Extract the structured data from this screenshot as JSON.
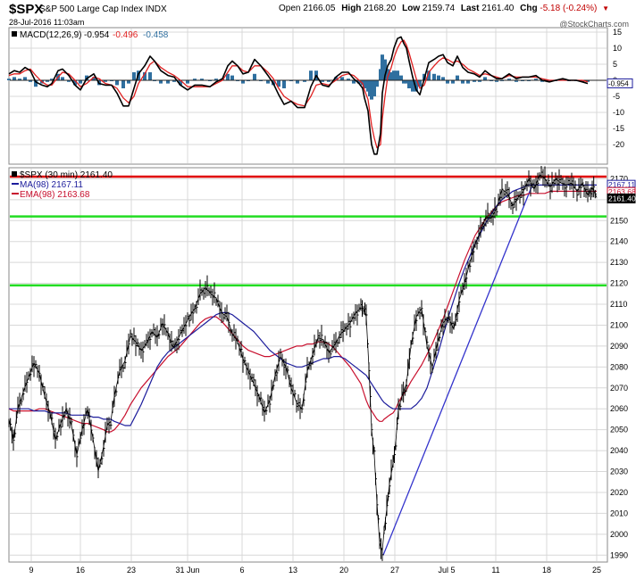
{
  "header": {
    "symbol": "$SPX",
    "description": "S&P 500 Large Cap Index  INDX",
    "timestamp": "28-Jul-2016 11:03am",
    "open_label": "Open",
    "open": "2166.05",
    "high_label": "High",
    "high": "2168.20",
    "low_label": "Low",
    "low": "2159.74",
    "last_label": "Last",
    "last": "2161.40",
    "chg_label": "Chg",
    "chg": "-5.18 (-0.24%)",
    "brand": "@StockCharts.com"
  },
  "colors": {
    "price": "#000000",
    "ma": "#1c1c9c",
    "ema": "#c8102e",
    "resistance": "#e00000",
    "support": "#22dd22",
    "trendline": "#3333cc",
    "macd_line": "#000000",
    "signal_line": "#e02020",
    "histogram": "#2f6f9f",
    "grid": "#d8d8d8"
  },
  "chart_data": [
    {
      "type": "line",
      "panel": "MACD",
      "legend": {
        "prefix": "MACD(12,26,9)",
        "macd": "-0.954",
        "signal": "-0.496",
        "hist": "-0.458"
      },
      "ylim": [
        -25,
        15
      ],
      "yticks": [
        15,
        10,
        5,
        0,
        -5,
        -10,
        -15,
        -20
      ],
      "tick_labels": [
        "15",
        "10",
        "5",
        "0",
        "-5",
        "-10",
        "-15",
        "-20"
      ],
      "last_value_label": "-0.954",
      "x": [
        0,
        6,
        12,
        18,
        24,
        30,
        37,
        43,
        48,
        55,
        60,
        67,
        74,
        80,
        87,
        95,
        101,
        108,
        115,
        121,
        128,
        134,
        140,
        145,
        152,
        158,
        163,
        170,
        178,
        185,
        192,
        200,
        208,
        216,
        225,
        232,
        239,
        245,
        250,
        256,
        262,
        268,
        275,
        282,
        290,
        296,
        302,
        308,
        316,
        323,
        331,
        338,
        344,
        351,
        358,
        366,
        373,
        380,
        386,
        392,
        396,
        398,
        402,
        404,
        406,
        409,
        412,
        416,
        418,
        421,
        424,
        428,
        431,
        435,
        439,
        442,
        445,
        448,
        452,
        456,
        460,
        465,
        470,
        476,
        481,
        486,
        491,
        497,
        502,
        508,
        514,
        521,
        527,
        533,
        540,
        546,
        552,
        560,
        568,
        575,
        582,
        590,
        597,
        605,
        612,
        620,
        627,
        635,
        642,
        648
      ],
      "series": [
        {
          "name": "MACD",
          "values": [
            2,
            3,
            2.5,
            4,
            3,
            -0.5,
            -1.5,
            -2,
            -1,
            3,
            3.5,
            1.5,
            -1.5,
            -3,
            0.5,
            2,
            -1,
            -1.5,
            -1.5,
            -4,
            -8,
            -8,
            -2.5,
            2,
            4.5,
            7.5,
            6,
            3,
            1.5,
            1,
            -1.5,
            -3,
            -1.5,
            -1.5,
            -2,
            -0.5,
            0.5,
            4.5,
            6,
            4.5,
            2,
            2.5,
            6.5,
            4.5,
            1.5,
            -1,
            -4.5,
            -7.5,
            -6.5,
            -8.5,
            -8.5,
            -2,
            1.5,
            -1.5,
            -2,
            1,
            2.5,
            2.5,
            0.5,
            -1,
            -2.5,
            -5.5,
            -9.5,
            -15,
            -20,
            -23,
            -23,
            -16.5,
            -4,
            1.5,
            4.5,
            6.5,
            10,
            13,
            13.5,
            11.5,
            10,
            6,
            1,
            -3,
            -4.5,
            0.5,
            5.5,
            6.5,
            7.5,
            8,
            5.5,
            4.5,
            7.5,
            4,
            2.5,
            2,
            1,
            3,
            1.5,
            0.5,
            0.5,
            2,
            0.5,
            1,
            1,
            1.5,
            0,
            -0.5,
            0,
            0.5,
            0,
            0,
            -0.5,
            -1
          ]
        },
        {
          "name": "Signal",
          "values": [
            1.5,
            2,
            2,
            3,
            3.5,
            1.5,
            -0.5,
            -1.5,
            -1.5,
            1,
            2.5,
            2,
            0,
            -2,
            -1,
            1,
            0.5,
            -1,
            -1.5,
            -2.5,
            -5.5,
            -7,
            -5,
            -1,
            2,
            5,
            6,
            4,
            2.5,
            1.5,
            0,
            -2,
            -2,
            -2,
            -2,
            -1,
            0,
            2.5,
            4.5,
            4.5,
            3,
            2.5,
            4.5,
            4.5,
            2.5,
            0.5,
            -2.5,
            -5,
            -6.5,
            -7.5,
            -8,
            -5,
            -1.5,
            -1,
            -1.5,
            0,
            1.5,
            2,
            1.5,
            0,
            -1,
            -3,
            -6,
            -10,
            -14,
            -18,
            -21,
            -20,
            -12,
            -5,
            1,
            4,
            7,
            10,
            12,
            12.5,
            11,
            8.5,
            4.5,
            0.5,
            -2.5,
            -1.5,
            2.5,
            4.5,
            6,
            7,
            6.5,
            5.5,
            6,
            5,
            3.5,
            2.5,
            1.5,
            2,
            1.5,
            1,
            0.5,
            1.5,
            1,
            1,
            1,
            1,
            0.5,
            0,
            0,
            0,
            0,
            0,
            0,
            -0.5
          ]
        }
      ]
    },
    {
      "type": "line",
      "panel": "Price",
      "legend": {
        "price": "$SPX (30 min) 2161.40",
        "ma": "MA(98) 2167.11",
        "ema": "EMA(98) 2163.68"
      },
      "ylim": [
        1988,
        2174
      ],
      "yticks": [
        1990,
        2000,
        2010,
        2020,
        2030,
        2040,
        2050,
        2060,
        2070,
        2080,
        2090,
        2100,
        2110,
        2120,
        2130,
        2140,
        2150,
        2160,
        2170
      ],
      "tick_labels": [
        "1990",
        "2000",
        "2010",
        "2020",
        "2030",
        "2040",
        "2050",
        "2060",
        "2070",
        "2080",
        "2090",
        "2100",
        "2110",
        "2120",
        "2130",
        "2140",
        "2150",
        "2160",
        "2170"
      ],
      "price_labels": {
        "last": "2161.40",
        "ma": "2167.11",
        "ema": "2163.68"
      },
      "x_labels": [
        "9",
        "16",
        "23",
        "31 Jun",
        "6",
        "13",
        "20",
        "27",
        "Jul 5",
        "11",
        "18",
        "25"
      ],
      "x_label_pos": [
        0,
        55,
        112,
        175,
        236,
        293,
        350,
        407,
        465,
        520,
        577,
        633
      ],
      "lines": {
        "resistance": 2171,
        "support_upper": 2152,
        "support_lower": 2119
      },
      "trendline": {
        "from": [
          419,
          1990
        ],
        "to": [
          585,
          2166
        ]
      },
      "x": [
        0,
        5,
        10,
        16,
        22,
        28,
        34,
        40,
        46,
        52,
        58,
        64,
        70,
        76,
        82,
        88,
        94,
        100,
        106,
        110,
        114,
        118,
        124,
        130,
        136,
        142,
        148,
        154,
        160,
        166,
        172,
        178,
        184,
        190,
        196,
        202,
        208,
        214,
        220,
        226,
        232,
        238,
        244,
        250,
        256,
        262,
        268,
        274,
        280,
        286,
        292,
        298,
        304,
        310,
        316,
        322,
        328,
        334,
        340,
        346,
        352,
        358,
        364,
        370,
        376,
        382,
        388,
        394,
        397,
        400,
        403,
        406,
        409,
        412,
        415,
        418,
        420,
        423,
        426,
        430,
        433,
        436,
        440,
        445,
        450,
        456,
        462,
        468,
        474,
        480,
        486,
        492,
        498,
        504,
        510,
        516,
        522,
        528,
        534,
        540,
        546,
        552,
        558,
        564,
        570,
        576,
        582,
        588,
        594,
        600,
        606,
        612,
        618,
        624,
        630,
        636,
        642,
        648,
        653,
        658
      ],
      "series": [
        {
          "name": "$SPX",
          "values": [
            2055,
            2045,
            2060,
            2068,
            2075,
            2082,
            2077,
            2066,
            2058,
            2045,
            2053,
            2060,
            2052,
            2038,
            2050,
            2060,
            2046,
            2030,
            2042,
            2052,
            2054,
            2066,
            2078,
            2083,
            2095,
            2092,
            2088,
            2091,
            2097,
            2094,
            2101,
            2096,
            2089,
            2094,
            2099,
            2104,
            2108,
            2115,
            2118,
            2115,
            2113,
            2106,
            2104,
            2096,
            2092,
            2084,
            2078,
            2072,
            2066,
            2058,
            2064,
            2076,
            2085,
            2080,
            2070,
            2063,
            2060,
            2078,
            2086,
            2094,
            2093,
            2087,
            2090,
            2095,
            2098,
            2101,
            2106,
            2108,
            2108,
            2104,
            2080,
            2050,
            2038,
            2015,
            1996,
            1992,
            2002,
            2012,
            2024,
            2034,
            2044,
            2060,
            2066,
            2072,
            2090,
            2104,
            2108,
            2090,
            2080,
            2092,
            2101,
            2104,
            2098,
            2112,
            2120,
            2130,
            2139,
            2145,
            2152,
            2151,
            2156,
            2165,
            2163,
            2157,
            2161,
            2164,
            2170,
            2165,
            2172,
            2170,
            2166,
            2170,
            2168,
            2167,
            2168,
            2164,
            2168,
            2162,
            2166,
            2161
          ]
        },
        {
          "name": "MA(98)",
          "values": [
            2060,
            2060,
            2060,
            2060,
            2060,
            2059,
            2059,
            2059,
            2058,
            2058,
            2058,
            2058,
            2057,
            2057,
            2057,
            2057,
            2056,
            2056,
            2055,
            2055,
            2055,
            2054,
            2053,
            2052,
            2052,
            2057,
            2062,
            2068,
            2074,
            2080,
            2084,
            2087,
            2089,
            2091,
            2093,
            2095,
            2097,
            2099,
            2101,
            2103,
            2105,
            2106,
            2106,
            2105,
            2103,
            2101,
            2099,
            2097,
            2094,
            2091,
            2088,
            2086,
            2084,
            2082,
            2081,
            2080,
            2080,
            2081,
            2082,
            2083,
            2084,
            2084,
            2085,
            2085,
            2084,
            2082,
            2080,
            2078,
            2077,
            2076,
            2074,
            2072,
            2070,
            2068,
            2066,
            2064,
            2063,
            2062,
            2061,
            2060,
            2060,
            2060,
            2060,
            2060,
            2060,
            2062,
            2065,
            2070,
            2078,
            2086,
            2095,
            2104,
            2112,
            2120,
            2127,
            2133,
            2139,
            2144,
            2149,
            2153,
            2157,
            2160,
            2162,
            2164,
            2165,
            2166,
            2167,
            2167,
            2167,
            2167,
            2167,
            2167,
            2167,
            2167,
            2167,
            2167,
            2167,
            2167,
            2167,
            2167
          ]
        },
        {
          "name": "EMA(98)",
          "values": [
            2060,
            2059,
            2059,
            2059,
            2059,
            2059,
            2060,
            2060,
            2059,
            2058,
            2057,
            2056,
            2055,
            2054,
            2053,
            2053,
            2052,
            2051,
            2050,
            2049,
            2049,
            2050,
            2053,
            2057,
            2062,
            2066,
            2070,
            2073,
            2076,
            2079,
            2082,
            2085,
            2087,
            2089,
            2092,
            2095,
            2098,
            2101,
            2103,
            2104,
            2104,
            2102,
            2099,
            2096,
            2093,
            2090,
            2088,
            2087,
            2086,
            2085,
            2085,
            2086,
            2087,
            2088,
            2089,
            2090,
            2090,
            2091,
            2091,
            2092,
            2092,
            2091,
            2089,
            2086,
            2083,
            2080,
            2076,
            2072,
            2068,
            2064,
            2061,
            2059,
            2057,
            2055,
            2054,
            2054,
            2055,
            2056,
            2057,
            2058,
            2060,
            2063,
            2066,
            2069,
            2073,
            2077,
            2081,
            2086,
            2091,
            2097,
            2103,
            2110,
            2117,
            2124,
            2131,
            2137,
            2143,
            2147,
            2151,
            2154,
            2157,
            2159,
            2160,
            2161,
            2162,
            2162,
            2163,
            2163,
            2163,
            2163,
            2164,
            2164,
            2164,
            2164,
            2164,
            2164,
            2164,
            2164,
            2164,
            2164
          ]
        }
      ]
    }
  ]
}
